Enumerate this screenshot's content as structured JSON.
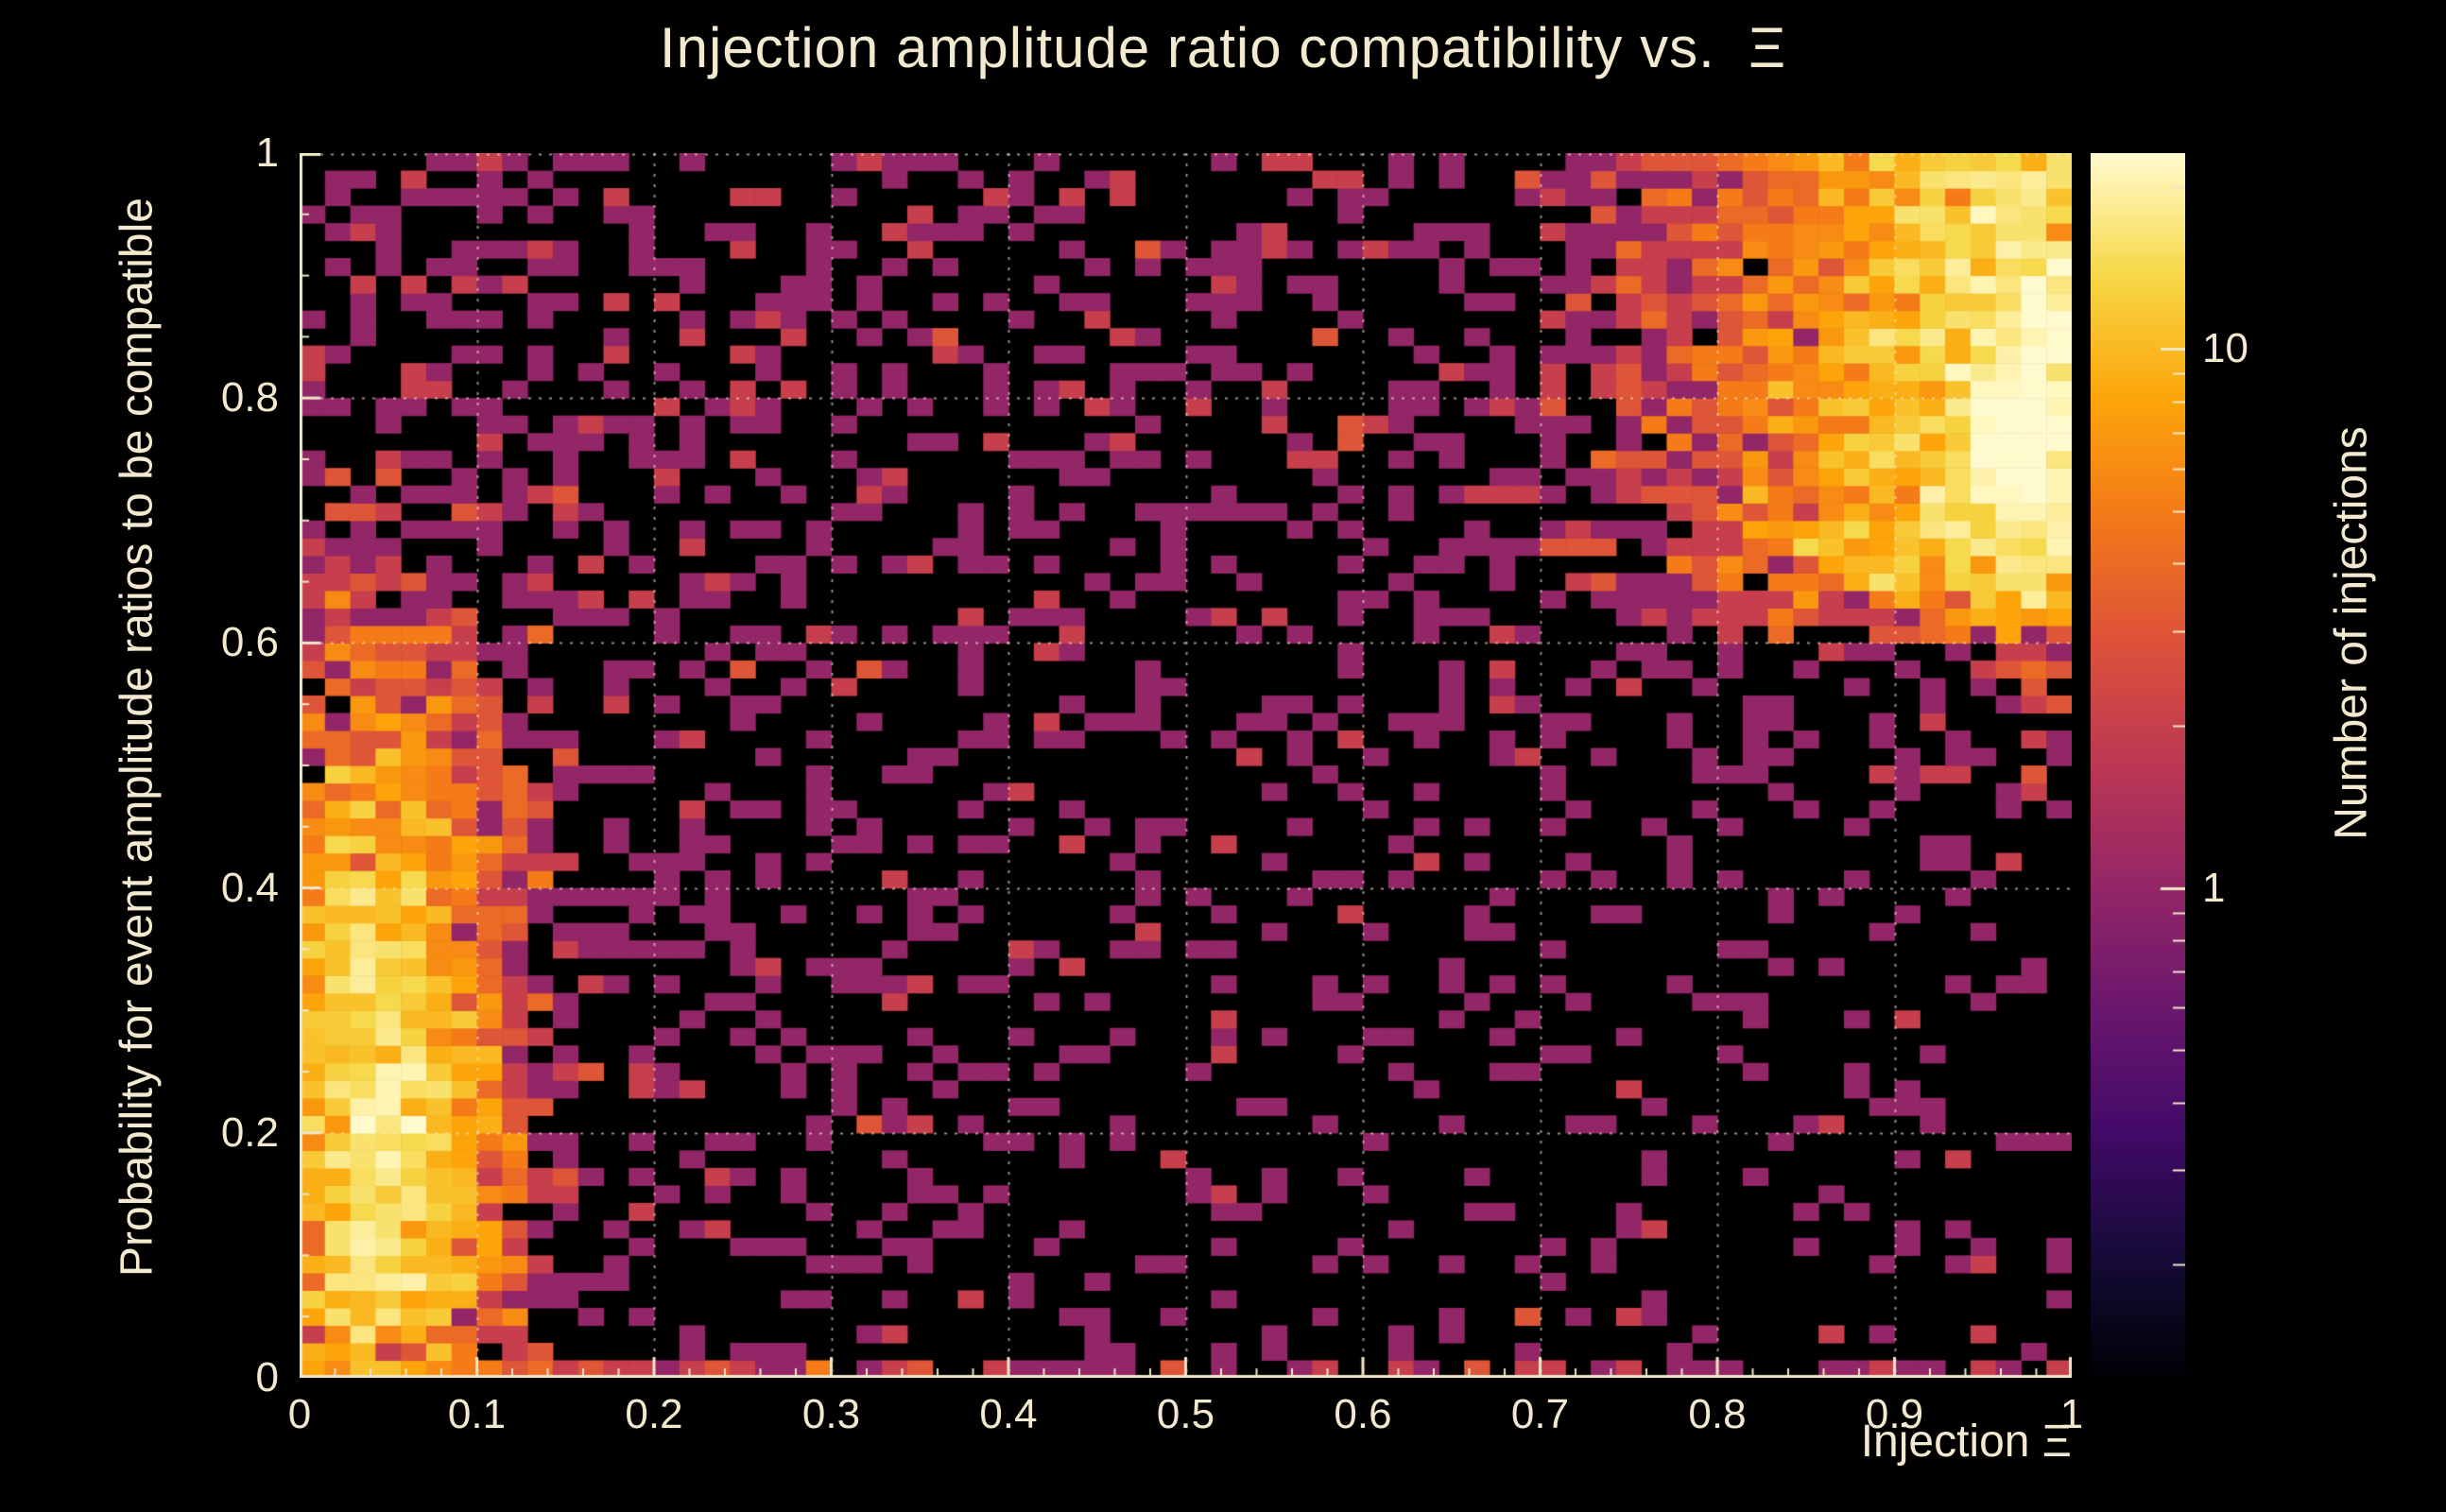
{
  "style": {
    "background_color": "#000000",
    "text_color": "#f2e9cf",
    "axis_color": "#efe6c8",
    "grid_color": "rgba(245,240,220,0.6)"
  },
  "chart_data": {
    "type": "heatmap",
    "title": "Injection amplitude ratio compatibility vs.  Ξ",
    "xlabel": "Injection Ξ",
    "ylabel": "Probability for event amplitude ratios to be compatible",
    "xlim": [
      0,
      1
    ],
    "ylim": [
      0,
      1
    ],
    "bins": {
      "nx": 70,
      "ny": 70
    },
    "x_ticks": {
      "values": [
        0,
        0.1,
        0.2,
        0.3,
        0.4,
        0.5,
        0.6,
        0.7,
        0.8,
        0.9,
        1
      ],
      "labels": [
        "0",
        "0.1",
        "0.2",
        "0.3",
        "0.4",
        "0.5",
        "0.6",
        "0.7",
        "0.8",
        "0.9",
        "1"
      ]
    },
    "y_ticks": {
      "values": [
        0,
        0.2,
        0.4,
        0.6,
        0.8,
        1
      ],
      "labels": [
        "0",
        "0.2",
        "0.4",
        "0.6",
        "0.8",
        "1"
      ]
    },
    "grid": {
      "x_lines": [
        0.1,
        0.2,
        0.3,
        0.4,
        0.5,
        0.6,
        0.7,
        0.8,
        0.9
      ],
      "y_lines": [
        0.2,
        0.4,
        0.6,
        0.8,
        1.0
      ],
      "style": "dotted"
    },
    "colorbar": {
      "label": "Number of injections",
      "scale": "log",
      "major_ticks": [
        {
          "value": 1,
          "label": "1"
        },
        {
          "value": 10,
          "label": "10"
        }
      ],
      "minor_tick_values": [
        0.2,
        0.3,
        0.4,
        0.5,
        0.6,
        0.7,
        0.8,
        0.9,
        2,
        3,
        4,
        5,
        6,
        7,
        8,
        9,
        20
      ]
    },
    "color_mapping": {
      "t0": 0.4,
      "k": 0.44,
      "comment": "t = t0 + k*log10(count), clamped to [0,1]"
    },
    "colormap_stops": [
      [
        0.0,
        0,
        0,
        4
      ],
      [
        0.1,
        22,
        11,
        57
      ],
      [
        0.2,
        66,
        10,
        104
      ],
      [
        0.3,
        106,
        23,
        110
      ],
      [
        0.4,
        147,
        38,
        103
      ],
      [
        0.5,
        188,
        55,
        84
      ],
      [
        0.6,
        221,
        81,
        58
      ],
      [
        0.7,
        243,
        120,
        25
      ],
      [
        0.8,
        252,
        165,
        10
      ],
      [
        0.9,
        246,
        215,
        70
      ],
      [
        1.0,
        255,
        250,
        205
      ]
    ],
    "seed": 20250901,
    "density_model": {
      "description": "Poisson-sampled 70x70 counts: sparse single-count scatter everywhere, a bright vertical band near x~0.05 for y<0.6 (peak ~16 counts around y~0.2), a bright region near x~1 for y>0.6 with hotspot ~0.97/0.78 reaching ~25 counts, and a filled bottom row.",
      "base": {
        "amp": 0.5,
        "x_slope": 0.45,
        "y_offset": 0.5,
        "y_slope": 0.6
      },
      "left_band": {
        "amp": 16,
        "x_center": 0.045,
        "x_sigma": 0.04,
        "y_components": [
          {
            "amp": 1.0,
            "center": 0.2,
            "sigma": 0.17
          },
          {
            "amp": 0.25,
            "center": 0.45,
            "sigma": 0.12
          }
        ]
      },
      "right_band": {
        "amp": 14,
        "x_center": 1.0,
        "x_sigma": 0.11,
        "y_onset": 0.58,
        "y_full": 0.68
      },
      "right_hotspot": {
        "amp": 10,
        "x_center": 0.97,
        "x_sigma": 0.03,
        "y_center": 0.78,
        "y_sigma": 0.1
      },
      "bottom_row_boost": 1.0,
      "count_cap": 28
    }
  }
}
